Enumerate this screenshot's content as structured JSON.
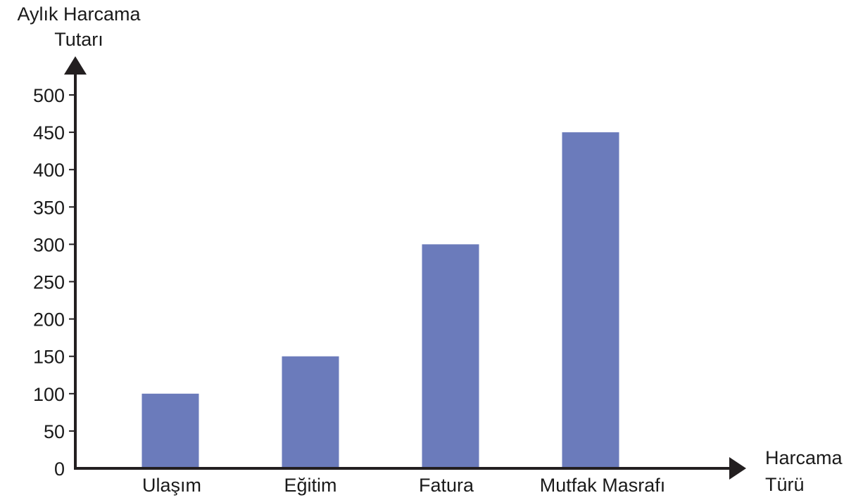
{
  "chart_data": {
    "type": "bar",
    "ylabel_lines": [
      "Aylık Harcama",
      "Tutarı"
    ],
    "xlabel_lines": [
      "Harcama",
      "Türü"
    ],
    "categories": [
      "Ulaşım",
      "Eğitim",
      "Fatura",
      "Mutfak Masrafı"
    ],
    "values": [
      100,
      150,
      300,
      450
    ],
    "yticks": [
      0,
      50,
      100,
      150,
      200,
      250,
      300,
      350,
      400,
      450,
      500
    ],
    "ytick_labels": [
      "0",
      "50",
      "100",
      "150",
      "200",
      "250",
      "300",
      "350",
      "400",
      "450",
      "500"
    ],
    "ylim": [
      0,
      500
    ],
    "grid": false,
    "legend": "none",
    "bar_color": "#6b7bbb",
    "axis_color": "#231f20"
  }
}
